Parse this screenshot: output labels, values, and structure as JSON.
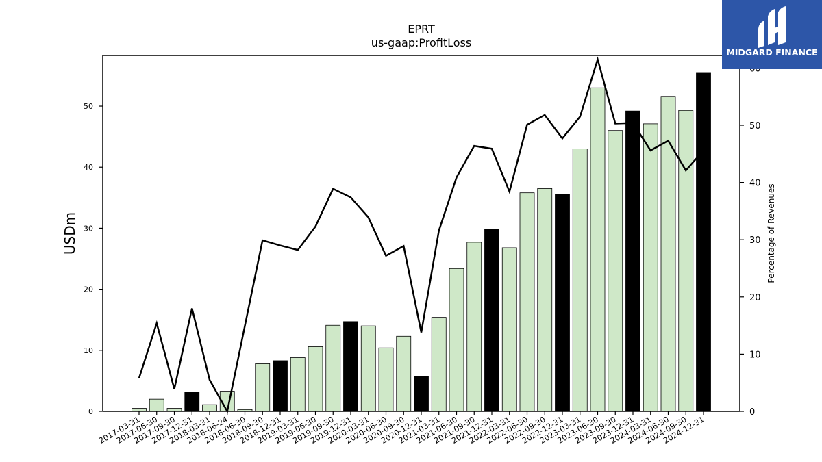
{
  "logo": {
    "text": "MIDGARD FINANCE",
    "bg_color": "#2d56a8"
  },
  "chart_data": {
    "type": "bar",
    "title": "EPRT",
    "subtitle": "us-gaap:ProfitLoss",
    "ylabel": "USDm",
    "y2label": "Percentage of Revenues",
    "ylim": [
      0,
      58.3
    ],
    "y2lim": [
      0,
      62.2
    ],
    "yticks": [
      0,
      10,
      20,
      30,
      40,
      50
    ],
    "y2ticks": [
      0,
      10,
      20,
      30,
      40,
      50,
      60
    ],
    "y2tick_labels": [
      "0",
      "10",
      "20",
      "30",
      "40",
      "50",
      "60"
    ],
    "grid": false,
    "categories": [
      "2017-03-31",
      "2017-06-30",
      "2017-09-30",
      "2017-12-31",
      "2018-03-31",
      "2018-06-24",
      "2018-06-30",
      "2018-09-30",
      "2018-12-31",
      "2019-03-31",
      "2019-06-30",
      "2019-09-30",
      "2019-12-31",
      "2020-03-31",
      "2020-06-30",
      "2020-09-30",
      "2020-12-31",
      "2021-03-31",
      "2021-06-30",
      "2021-09-30",
      "2021-12-31",
      "2022-03-31",
      "2022-06-30",
      "2022-09-30",
      "2022-12-31",
      "2023-03-31",
      "2023-06-30",
      "2023-09-30",
      "2023-12-31",
      "2024-03-31",
      "2024-06-30",
      "2024-09-30",
      "2024-12-31"
    ],
    "series": [
      {
        "type": "bar",
        "values": [
          0.5,
          2.0,
          0.5,
          3.1,
          1.1,
          3.3,
          0.3,
          7.8,
          8.3,
          8.8,
          10.6,
          14.1,
          14.7,
          14.0,
          10.4,
          12.3,
          5.7,
          15.4,
          23.4,
          27.7,
          29.8,
          26.8,
          35.8,
          36.5,
          35.5,
          43.0,
          53.0,
          46.0,
          49.2,
          47.1,
          51.6,
          49.3,
          55.5
        ],
        "annual_flags": [
          false,
          false,
          false,
          true,
          false,
          false,
          false,
          false,
          true,
          false,
          false,
          false,
          true,
          false,
          false,
          false,
          true,
          false,
          false,
          false,
          true,
          false,
          false,
          false,
          true,
          false,
          false,
          false,
          true,
          false,
          false,
          false,
          true
        ],
        "quarter_color": "#cfe8c8",
        "annual_color": "#000000"
      },
      {
        "type": "line",
        "axis": "right",
        "values": [
          5.8,
          15.4,
          3.9,
          18.0,
          5.5,
          0.0,
          null,
          29.9,
          29.0,
          28.2,
          32.3,
          38.9,
          37.4,
          33.9,
          27.2,
          28.9,
          13.8,
          31.6,
          40.9,
          46.4,
          45.9,
          38.4,
          50.1,
          51.8,
          47.7,
          51.5,
          61.5,
          50.3,
          50.4,
          45.6,
          47.3,
          42.1,
          45.6
        ],
        "color": "#000000"
      }
    ]
  }
}
